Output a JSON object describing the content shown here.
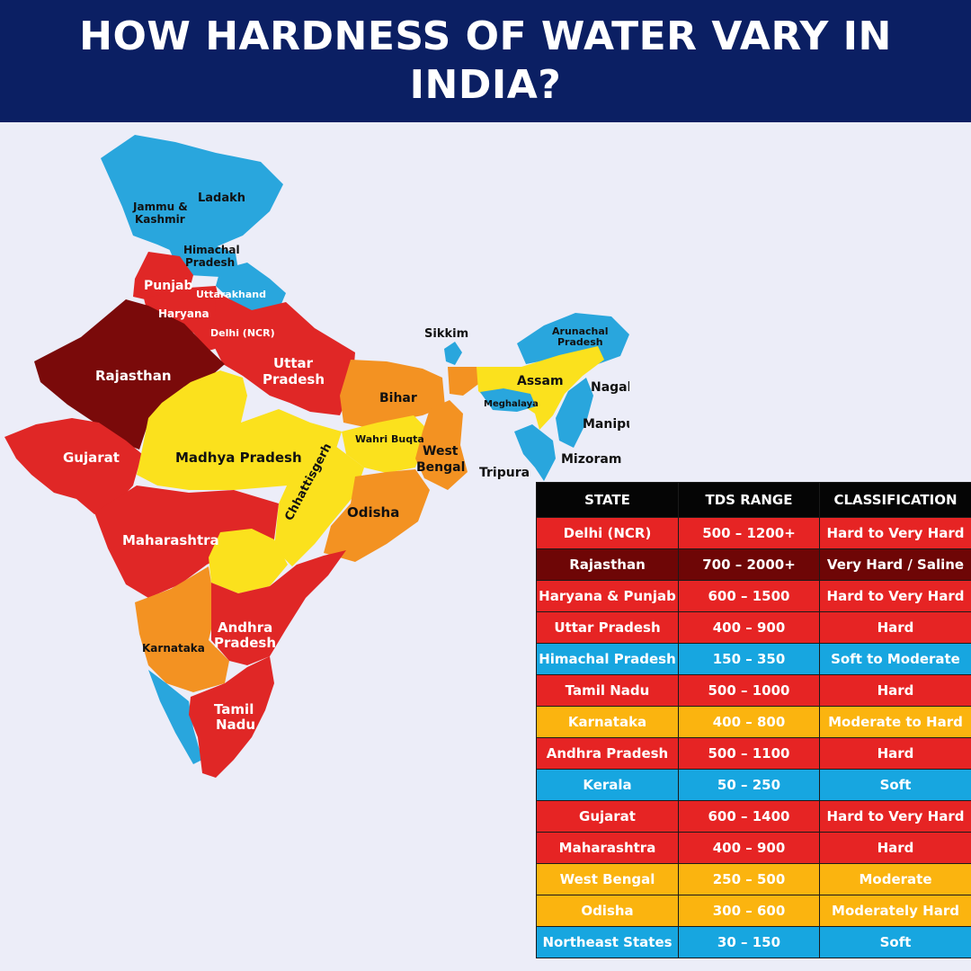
{
  "title": "HOW HARDNESS OF WATER VARY IN INDIA?",
  "colors": {
    "header_bg": "#0b1f63",
    "soft": "#29a6dd",
    "moderate": "#fbe11d",
    "moderate_to_hard": "#f39222",
    "hard": "#e02726",
    "very_hard": "#7a0a0a",
    "table_header": "#050505"
  },
  "map": {
    "labels": {
      "ladakh": "Ladakh",
      "jammu_kashmir_1": "Jammu &",
      "jammu_kashmir_2": "Kashmir",
      "himachal_1": "Himachal",
      "himachal_2": "Pradesh",
      "punjab": "Punjab",
      "uttarakhand": "Uttarakhand",
      "haryana": "Haryana",
      "delhi": "Delhi (NCR)",
      "rajasthan": "Rajasthan",
      "uttar_pradesh_1": "Uttar",
      "uttar_pradesh_2": "Pradesh",
      "bihar": "Bihar",
      "sikkim": "Sikkim",
      "arunachal_1": "Arunachal",
      "arunachal_2": "Pradesh",
      "assam": "Assam",
      "meghalaya": "Meghalaya",
      "nagaland": "Nagaland",
      "manipur": "Manipur",
      "mizoram": "Mizoram",
      "tripura": "Tripura",
      "gujarat": "Gujarat",
      "madhya_pradesh": "Madhya Pradesh",
      "wahri_buqta": "Wahri Buqta",
      "west_bengal_1": "West",
      "west_bengal_2": "Bengal",
      "chhattisgarh": "Chhattisgerh",
      "odisha": "Odisha",
      "maharashtra": "Maharashtra",
      "andhra_1": "Andhra",
      "andhra_2": "Pradesh",
      "karnataka": "Karnataka",
      "tamil_1": "Tamil",
      "tamil_2": "Nadu"
    }
  },
  "table": {
    "headers": [
      "STATE",
      "TDS RANGE",
      "CLASSIFICATION"
    ],
    "rows": [
      {
        "state": "Delhi (NCR)",
        "tds": "500 – 1200+",
        "classification": "Hard to Very Hard",
        "color": "#e62424"
      },
      {
        "state": "Rajasthan",
        "tds": "700 – 2000+",
        "classification": "Very Hard / Saline",
        "color": "#6e0606"
      },
      {
        "state": "Haryana & Punjab",
        "tds": "600 – 1500",
        "classification": "Hard to Very Hard",
        "color": "#e62424"
      },
      {
        "state": "Uttar Pradesh",
        "tds": "400 – 900",
        "classification": "Hard",
        "color": "#e62424"
      },
      {
        "state": "Himachal Pradesh",
        "tds": "150 – 350",
        "classification": "Soft to Moderate",
        "color": "#17a6e0"
      },
      {
        "state": "Tamil Nadu",
        "tds": "500 – 1000",
        "classification": "Hard",
        "color": "#e62424"
      },
      {
        "state": "Karnataka",
        "tds": "400 – 800",
        "classification": "Moderate to Hard",
        "color": "#fbb40f"
      },
      {
        "state": "Andhra Pradesh",
        "tds": "500 – 1100",
        "classification": "Hard",
        "color": "#e62424"
      },
      {
        "state": "Kerala",
        "tds": "50 – 250",
        "classification": "Soft",
        "color": "#17a6e0"
      },
      {
        "state": "Gujarat",
        "tds": "600 – 1400",
        "classification": "Hard to Very Hard",
        "color": "#e62424"
      },
      {
        "state": "Maharashtra",
        "tds": "400 – 900",
        "classification": "Hard",
        "color": "#e62424"
      },
      {
        "state": "West Bengal",
        "tds": "250 – 500",
        "classification": "Moderate",
        "color": "#fbb40f"
      },
      {
        "state": "Odisha",
        "tds": "300 – 600",
        "classification": "Moderately Hard",
        "color": "#fbb40f"
      },
      {
        "state": "Northeast States",
        "tds": "30 – 150",
        "classification": "Soft",
        "color": "#17a6e0"
      }
    ]
  }
}
